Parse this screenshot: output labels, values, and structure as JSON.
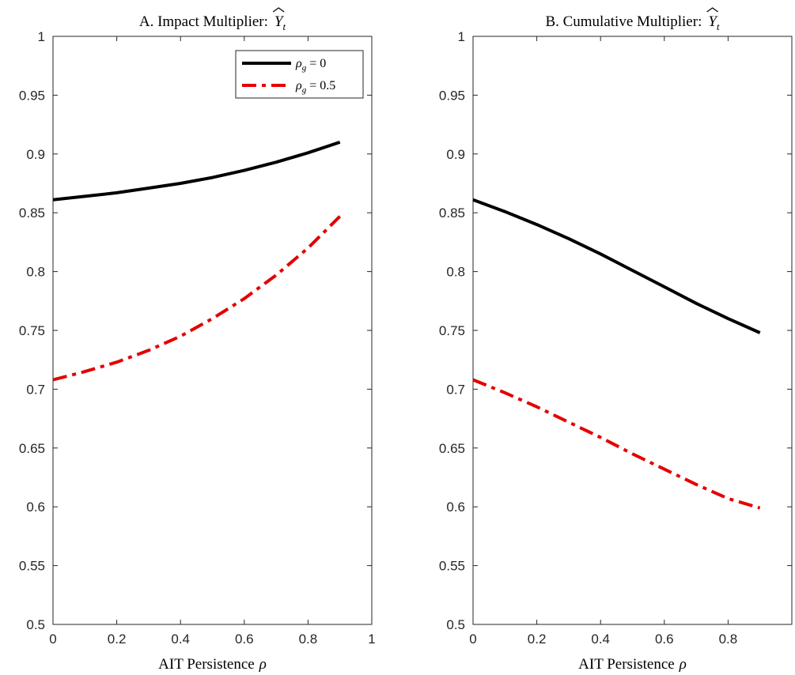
{
  "chart_data": [
    {
      "type": "line",
      "title": "A. Impact Multiplier: Ŷ_t",
      "title_main": "A. Impact Multiplier:",
      "title_var": "Y",
      "title_sub": "t",
      "xlabel_main": "AIT Persistence",
      "xlabel_sym": "ρ",
      "xlim": [
        0,
        1
      ],
      "ylim": [
        0.5,
        1
      ],
      "xticks": [
        "0",
        "0.2",
        "0.4",
        "0.6",
        "0.8",
        "1"
      ],
      "yticks": [
        "0.5",
        "0.55",
        "0.6",
        "0.65",
        "0.7",
        "0.75",
        "0.8",
        "0.85",
        "0.9",
        "0.95",
        "1"
      ],
      "grid": false,
      "legend_position": "top-right",
      "legend_entries": [
        {
          "sym": "ρ",
          "sub": "g",
          "rest": " = 0"
        },
        {
          "sym": "ρ",
          "sub": "g",
          "rest": " = 0.5"
        }
      ],
      "series": [
        {
          "name": "ρ_g = 0",
          "color": "#000000",
          "style": "solid",
          "x": [
            0,
            0.1,
            0.2,
            0.3,
            0.4,
            0.5,
            0.6,
            0.7,
            0.8,
            0.9
          ],
          "y": [
            0.861,
            0.864,
            0.867,
            0.871,
            0.875,
            0.88,
            0.886,
            0.893,
            0.901,
            0.91
          ]
        },
        {
          "name": "ρ_g = 0.5",
          "color": "#e50000",
          "style": "dashdot",
          "x": [
            0,
            0.1,
            0.2,
            0.3,
            0.4,
            0.5,
            0.6,
            0.7,
            0.8,
            0.9
          ],
          "y": [
            0.708,
            0.715,
            0.723,
            0.733,
            0.745,
            0.76,
            0.777,
            0.797,
            0.82,
            0.847
          ]
        }
      ]
    },
    {
      "type": "line",
      "title": "B. Cumulative Multiplier: Ŷ_t",
      "title_main": "B. Cumulative Multiplier:",
      "title_var": "Y",
      "title_sub": "t",
      "xlabel_main": "AIT Persistence",
      "xlabel_sym": "ρ",
      "xlim": [
        0,
        1
      ],
      "ylim": [
        0.5,
        1
      ],
      "xticks": [
        "0",
        "0.2",
        "0.4",
        "0.6",
        "0.8"
      ],
      "yticks": [
        "0.5",
        "0.55",
        "0.6",
        "0.65",
        "0.7",
        "0.75",
        "0.8",
        "0.85",
        "0.9",
        "0.95",
        "1"
      ],
      "grid": false,
      "series": [
        {
          "color": "#000000",
          "style": "solid",
          "x": [
            0,
            0.1,
            0.2,
            0.3,
            0.4,
            0.5,
            0.6,
            0.7,
            0.8,
            0.9
          ],
          "y": [
            0.861,
            0.851,
            0.84,
            0.828,
            0.815,
            0.801,
            0.787,
            0.773,
            0.76,
            0.748
          ]
        },
        {
          "color": "#e50000",
          "style": "dashdot",
          "x": [
            0,
            0.1,
            0.2,
            0.3,
            0.4,
            0.5,
            0.6,
            0.7,
            0.8,
            0.9
          ],
          "y": [
            0.708,
            0.697,
            0.685,
            0.672,
            0.659,
            0.645,
            0.632,
            0.619,
            0.607,
            0.599
          ]
        }
      ]
    }
  ]
}
